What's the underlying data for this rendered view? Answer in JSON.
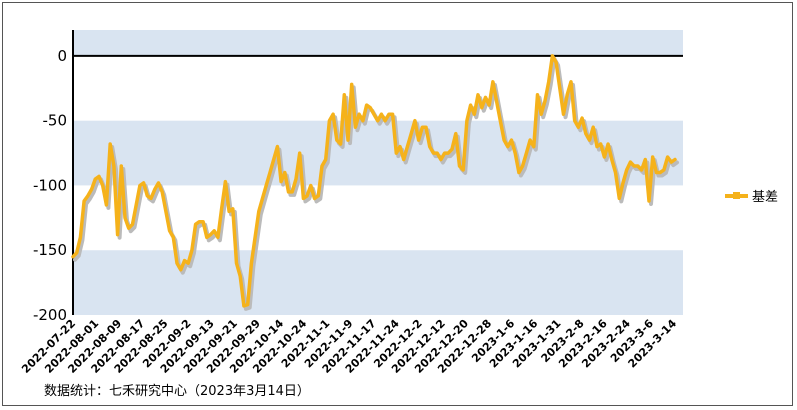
{
  "chart_data": {
    "type": "line",
    "title": "",
    "xlabel": "",
    "ylabel": "",
    "ylim": [
      -200,
      20
    ],
    "yticks": [
      0,
      -50,
      -100,
      -150,
      -200
    ],
    "grid": "alternating horizontal bands",
    "legend_position": "right",
    "x_tick_labels": [
      "2022-07-22",
      "2022-08-01",
      "2022-08-09",
      "2022-08-17",
      "2022-08-25",
      "2022-09-2",
      "2022-09-13",
      "2022-09-21",
      "2022-09-29",
      "2022-10-14",
      "2022-10-24",
      "2022-11-1",
      "2022-11-9",
      "2022-11-17",
      "2022-11-24",
      "2022-12-2",
      "2022-12-12",
      "2022-12-20",
      "2022-12-28",
      "2023-1-6",
      "2023-1-16",
      "2023-1-31",
      "2023-2-8",
      "2023-2-16",
      "2023-2-24",
      "2023-3-6",
      "2023-3-14"
    ],
    "series": [
      {
        "name": "基差",
        "color": "#f5b21b",
        "shadow_color": "#bbbbbb",
        "values": [
          -155,
          -152,
          -140,
          -112,
          -108,
          -103,
          -95,
          -93,
          -100,
          -115,
          -68,
          -85,
          -138,
          -85,
          -125,
          -133,
          -130,
          -115,
          -100,
          -98,
          -108,
          -110,
          -103,
          -98,
          -105,
          -120,
          -135,
          -140,
          -160,
          -165,
          -158,
          -160,
          -150,
          -130,
          -128,
          -128,
          -140,
          -138,
          -135,
          -140,
          -118,
          -97,
          -120,
          -118,
          -160,
          -170,
          -193,
          -192,
          -160,
          -140,
          -120,
          -110,
          -100,
          -90,
          -80,
          -70,
          -97,
          -90,
          -105,
          -105,
          -95,
          -75,
          -110,
          -108,
          -100,
          -110,
          -108,
          -85,
          -80,
          -50,
          -45,
          -65,
          -68,
          -30,
          -65,
          -22,
          -55,
          -45,
          -50,
          -38,
          -40,
          -45,
          -50,
          -45,
          -50,
          -45,
          -45,
          -75,
          -70,
          -80,
          -70,
          -60,
          -50,
          -65,
          -55,
          -55,
          -70,
          -75,
          -75,
          -80,
          -75,
          -75,
          -72,
          -60,
          -85,
          -88,
          -50,
          -38,
          -45,
          -30,
          -40,
          -32,
          -38,
          -20,
          -35,
          -50,
          -65,
          -70,
          -65,
          -75,
          -90,
          -85,
          -75,
          -65,
          -70,
          -30,
          -45,
          -35,
          -20,
          0,
          -5,
          -25,
          -45,
          -30,
          -20,
          -50,
          -55,
          -48,
          -60,
          -65,
          -55,
          -70,
          -68,
          -78,
          -68,
          -80,
          -90,
          -110,
          -98,
          -88,
          -82,
          -85,
          -85,
          -88,
          -80,
          -112,
          -78,
          -90,
          -90,
          -88,
          -78,
          -82,
          -80
        ]
      }
    ]
  },
  "legend": {
    "label": "基差"
  },
  "source_note": "数据统计：七禾研究中心（2023年3月14日）"
}
